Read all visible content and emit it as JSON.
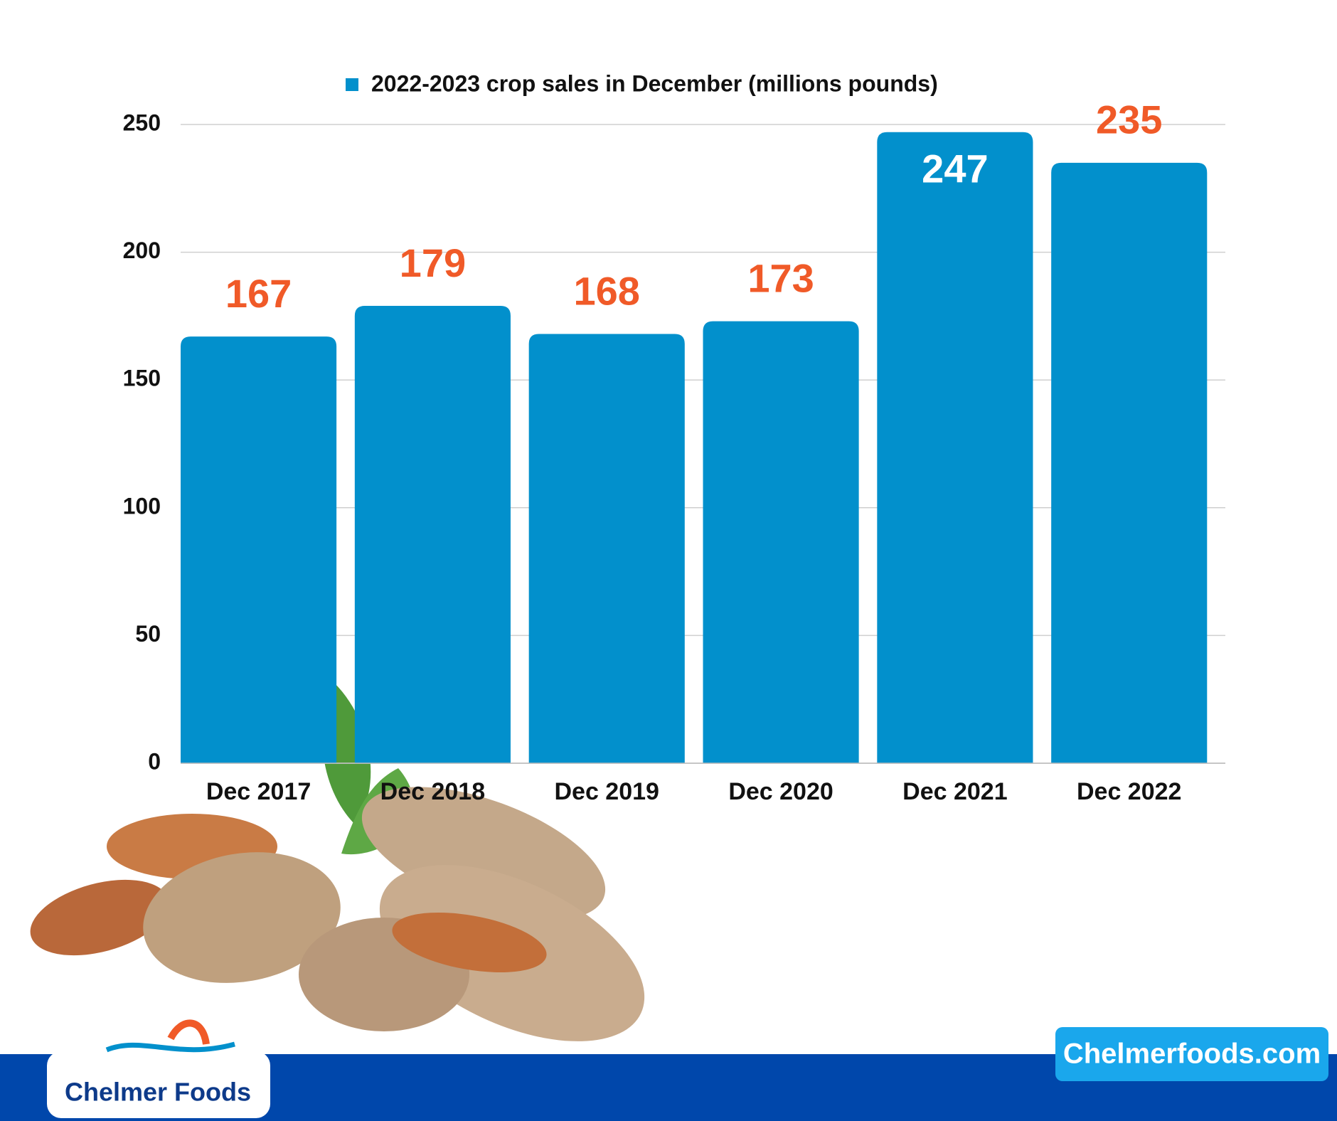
{
  "chart_data": {
    "type": "bar",
    "legend": "2022-2023 crop sales in December (millions pounds)",
    "categories": [
      "Dec 2017",
      "Dec 2018",
      "Dec 2019",
      "Dec 2020",
      "Dec 2021",
      "Dec 2022"
    ],
    "values": [
      167,
      179,
      168,
      173,
      247,
      235
    ],
    "color": "#0290cc",
    "label_color": "#f05a28",
    "ylim": [
      0,
      250
    ],
    "yticks": [
      0,
      50,
      100,
      150,
      200,
      250
    ],
    "grid": true
  },
  "brand": {
    "logo": "Chelmer Foods",
    "website": "Chelmerfoods.com"
  }
}
